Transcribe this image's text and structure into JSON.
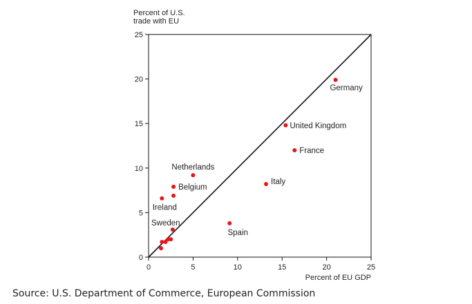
{
  "chart_data": {
    "type": "scatter",
    "title": "",
    "ylabel_lines": [
      "Percent of U.S.",
      "trade with EU"
    ],
    "xlabel": "Percent of EU GDP",
    "xlim": [
      0,
      25
    ],
    "ylim": [
      0,
      25
    ],
    "xticks": [
      0,
      5,
      10,
      15,
      20,
      25
    ],
    "yticks": [
      0,
      5,
      10,
      15,
      20,
      25
    ],
    "grid": false,
    "reference_line": "y = x",
    "point_color": "#e8141c",
    "points": [
      {
        "label": "Germany",
        "x": 21.0,
        "y": 19.9
      },
      {
        "label": "United Kingdom",
        "x": 15.4,
        "y": 14.8
      },
      {
        "label": "France",
        "x": 16.4,
        "y": 12.0
      },
      {
        "label": "Italy",
        "x": 13.2,
        "y": 8.2
      },
      {
        "label": "Spain",
        "x": 9.1,
        "y": 3.8
      },
      {
        "label": "Netherlands",
        "x": 5.0,
        "y": 9.2
      },
      {
        "label": "Belgium",
        "x": 2.8,
        "y": 7.9
      },
      {
        "label": "",
        "x": 2.8,
        "y": 6.9
      },
      {
        "label": "Ireland",
        "x": 1.5,
        "y": 6.6
      },
      {
        "label": "Sweden",
        "x": 2.7,
        "y": 3.1
      },
      {
        "label": "",
        "x": 2.5,
        "y": 2.0
      },
      {
        "label": "",
        "x": 2.2,
        "y": 2.0
      },
      {
        "label": "",
        "x": 1.9,
        "y": 1.7
      },
      {
        "label": "",
        "x": 1.5,
        "y": 1.7
      },
      {
        "label": "",
        "x": 1.4,
        "y": 1.0
      }
    ]
  },
  "source": "Source: U.S. Department of Commerce, European Commission"
}
